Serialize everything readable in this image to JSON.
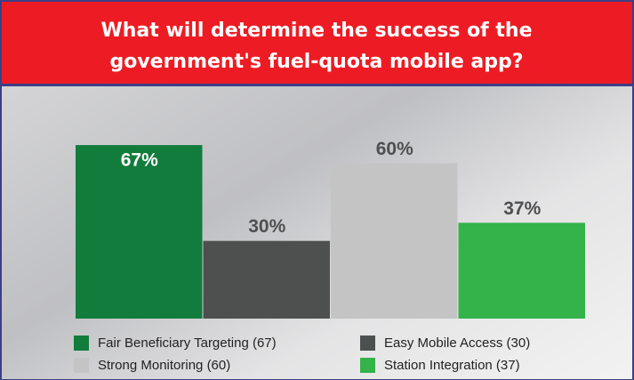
{
  "chart_data": {
    "type": "bar",
    "title": [
      "What will determine the success of the",
      "government's fuel-quota mobile app?"
    ],
    "categories": [
      "Fair Beneficiary Targeting  (67)",
      "Easy Mobile Access  (30)",
      "Strong Monitoring  (60)",
      "Station Integration  (37)"
    ],
    "values": [
      67,
      30,
      60,
      37
    ],
    "value_labels": [
      "67%",
      "30%",
      "60%",
      "37%"
    ],
    "colors": [
      "#127c3c",
      "#4e4f4f",
      "#c4c4c4",
      "#33b34a"
    ],
    "ylim": [
      0,
      100
    ]
  }
}
